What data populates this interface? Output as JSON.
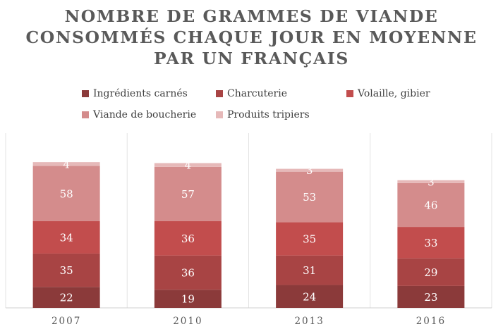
{
  "chart_data": {
    "type": "bar",
    "stacked": true,
    "title": "NOMBRE DE GRAMMES DE VIANDE CONSOMMÉS CHAQUE JOUR EN MOYENNE PAR UN FRANÇAIS",
    "title_lines": [
      "NOMBRE DE GRAMMES DE VIANDE",
      "CONSOMMÉS CHAQUE JOUR EN MOYENNE",
      "PAR UN FRANÇAIS"
    ],
    "categories": [
      "2007",
      "2010",
      "2013",
      "2016"
    ],
    "series": [
      {
        "name": "Ingrédients carnés",
        "color": "#8b3a3a",
        "values": [
          22,
          19,
          24,
          23
        ]
      },
      {
        "name": "Charcuterie",
        "color": "#a84444",
        "values": [
          35,
          36,
          31,
          29
        ]
      },
      {
        "name": "Volaille, gibier",
        "color": "#c24d4d",
        "values": [
          34,
          36,
          35,
          33
        ]
      },
      {
        "name": "Viande de boucherie",
        "color": "#d48c8c",
        "values": [
          58,
          57,
          53,
          46
        ]
      },
      {
        "name": "Produits tripiers",
        "color": "#e6b9b9",
        "values": [
          4,
          4,
          3,
          3
        ]
      }
    ],
    "legend_position": "top",
    "grid": false,
    "xlabel": "",
    "ylabel": ""
  }
}
